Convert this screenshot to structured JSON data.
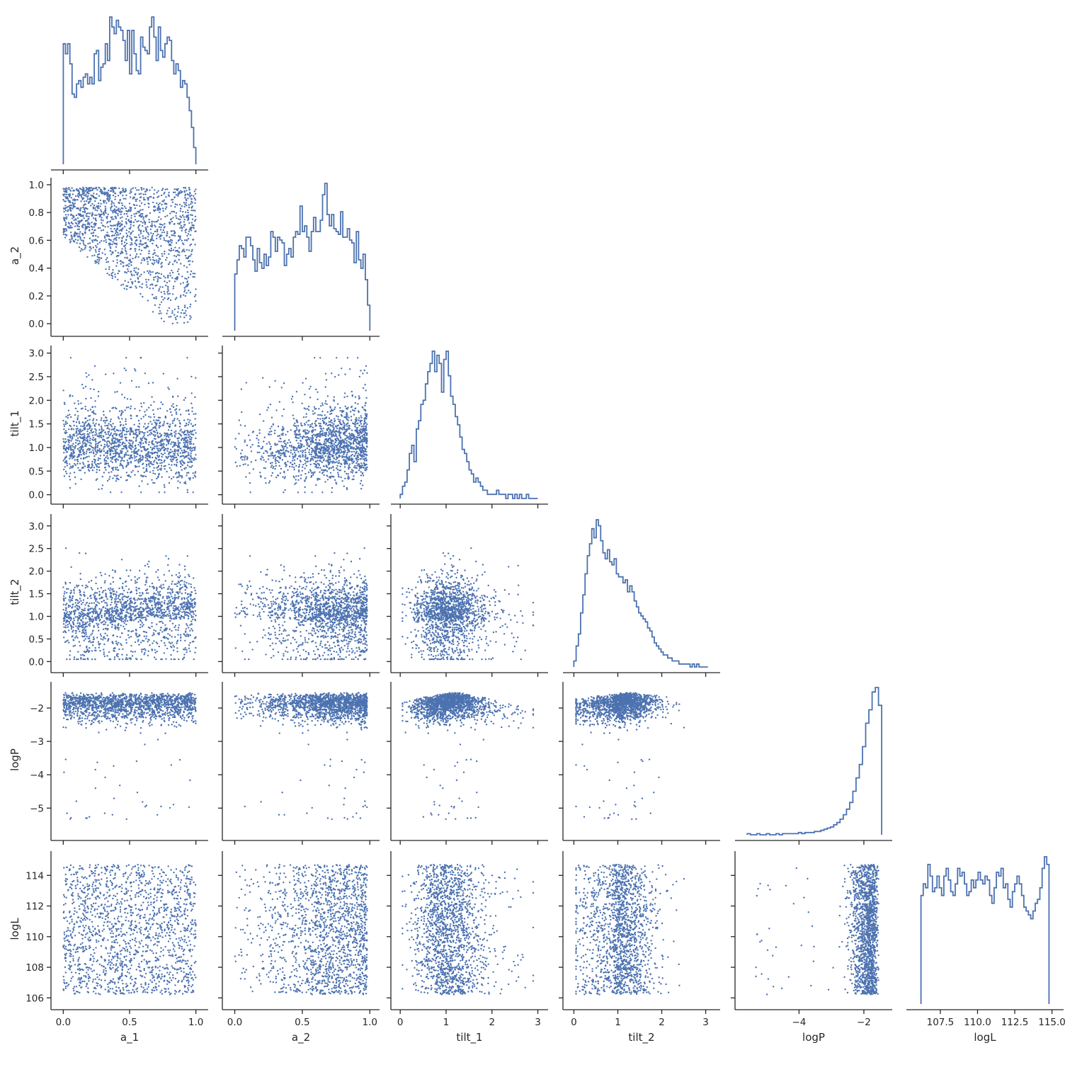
{
  "chart_data": {
    "type": "pairplot-corner",
    "colors": {
      "series": "#4c72b0",
      "axis": "#262626"
    },
    "grid": false,
    "variables": [
      "a_1",
      "a_2",
      "tilt_1",
      "tilt_2",
      "logP",
      "logL"
    ],
    "axis_labels": [
      "a_1",
      "a_2",
      "tilt_1",
      "tilt_2",
      "logP",
      "logL"
    ],
    "ranges": {
      "a_1": [
        -0.05,
        1.05
      ],
      "a_2": [
        -0.05,
        1.03
      ],
      "tilt_1": [
        -0.08,
        3.1
      ],
      "tilt_2": [
        -0.12,
        3.2
      ],
      "logP": [
        -5.8,
        -1.3
      ],
      "logL": [
        105.6,
        115.4
      ]
    },
    "ticks": {
      "a_1": [
        {
          "v": 0.0,
          "label": "0.0"
        },
        {
          "v": 0.5,
          "label": "0.5"
        },
        {
          "v": 1.0,
          "label": "1.0"
        }
      ],
      "a_2": [
        {
          "v": 0.0,
          "label": "0.0"
        },
        {
          "v": 0.2,
          "label": "0.2"
        },
        {
          "v": 0.4,
          "label": "0.4"
        },
        {
          "v": 0.6,
          "label": "0.6"
        },
        {
          "v": 0.8,
          "label": "0.8"
        },
        {
          "v": 1.0,
          "label": "1.0"
        }
      ],
      "a_2_x": [
        {
          "v": 0.0,
          "label": "0.0"
        },
        {
          "v": 0.5,
          "label": "0.5"
        },
        {
          "v": 1.0,
          "label": "1.0"
        }
      ],
      "tilt_1": [
        {
          "v": 0.0,
          "label": "0.0"
        },
        {
          "v": 0.5,
          "label": "0.5"
        },
        {
          "v": 1.0,
          "label": "1.0"
        },
        {
          "v": 1.5,
          "label": "1.5"
        },
        {
          "v": 2.0,
          "label": "2.0"
        },
        {
          "v": 2.5,
          "label": "2.5"
        },
        {
          "v": 3.0,
          "label": "3.0"
        }
      ],
      "tilt_1_x": [
        {
          "v": 0,
          "label": "0"
        },
        {
          "v": 1,
          "label": "1"
        },
        {
          "v": 2,
          "label": "2"
        },
        {
          "v": 3,
          "label": "3"
        }
      ],
      "tilt_2": [
        {
          "v": 0.0,
          "label": "0.0"
        },
        {
          "v": 0.5,
          "label": "0.5"
        },
        {
          "v": 1.0,
          "label": "1.0"
        },
        {
          "v": 1.5,
          "label": "1.5"
        },
        {
          "v": 2.0,
          "label": "2.0"
        },
        {
          "v": 2.5,
          "label": "2.5"
        },
        {
          "v": 3.0,
          "label": "3.0"
        }
      ],
      "tilt_2_x": [
        {
          "v": 0,
          "label": "0"
        },
        {
          "v": 1,
          "label": "1"
        },
        {
          "v": 2,
          "label": "2"
        },
        {
          "v": 3,
          "label": "3"
        }
      ],
      "logP": [
        {
          "v": -5,
          "label": "−5"
        },
        {
          "v": -4,
          "label": "−4"
        },
        {
          "v": -3,
          "label": "−3"
        },
        {
          "v": -2,
          "label": "−2"
        }
      ],
      "logP_x": [
        {
          "v": -4,
          "label": "−4"
        },
        {
          "v": -2,
          "label": "−2"
        }
      ],
      "logL": [
        {
          "v": 106,
          "label": "106"
        },
        {
          "v": 108,
          "label": "108"
        },
        {
          "v": 110,
          "label": "110"
        },
        {
          "v": 112,
          "label": "112"
        },
        {
          "v": 114,
          "label": "114"
        }
      ],
      "logL_x": [
        {
          "v": 107.5,
          "label": "107.5"
        },
        {
          "v": 110.0,
          "label": "110.0"
        },
        {
          "v": 112.5,
          "label": "112.5"
        },
        {
          "v": 115.0,
          "label": "115.0"
        }
      ]
    },
    "histograms": {
      "a_1": {
        "edges": [
          0.0,
          1.0
        ],
        "counts": [
          36,
          33,
          36,
          30,
          21,
          20,
          24,
          25,
          23,
          26,
          27,
          24,
          26,
          24,
          33,
          34,
          25,
          29,
          30,
          36,
          31,
          44,
          41,
          39,
          43,
          41,
          40,
          37,
          31,
          40,
          27,
          40,
          33,
          28,
          27,
          38,
          35,
          34,
          33,
          41,
          44,
          38,
          31,
          41,
          34,
          32,
          36,
          38,
          37,
          31,
          27,
          30,
          28,
          23,
          25,
          24,
          20,
          16,
          11,
          5
        ]
      },
      "a_2": {
        "edges": [
          0.0,
          1.0
        ],
        "counts": [
          20,
          25,
          30,
          29,
          26,
          33,
          33,
          30,
          25,
          21,
          29,
          24,
          22,
          27,
          23,
          26,
          35,
          33,
          28,
          33,
          32,
          31,
          23,
          27,
          29,
          26,
          33,
          35,
          34,
          44,
          35,
          37,
          33,
          28,
          35,
          40,
          35,
          35,
          39,
          48,
          52,
          41,
          37,
          41,
          36,
          35,
          34,
          42,
          33,
          33,
          36,
          32,
          31,
          24,
          35,
          25,
          22,
          27,
          18,
          9
        ]
      },
      "tilt_1": {
        "edges": [
          0.0,
          3.0
        ],
        "counts": [
          1,
          3,
          4,
          7,
          11,
          13,
          9,
          17,
          19,
          23,
          24,
          28,
          31,
          33,
          36,
          31,
          35,
          33,
          26,
          34,
          36,
          30,
          25,
          23,
          20,
          18,
          15,
          12,
          11,
          9,
          7,
          6,
          4,
          5,
          4,
          3,
          2,
          2,
          1,
          1,
          1,
          1,
          2,
          1,
          1,
          1,
          0,
          1,
          1,
          0,
          1,
          0,
          1,
          0,
          0,
          1,
          0,
          0,
          0,
          0
        ]
      },
      "tilt_2": {
        "edges": [
          0.0,
          3.05
        ],
        "counts": [
          2,
          7,
          11,
          18,
          24,
          31,
          37,
          41,
          46,
          43,
          49,
          47,
          42,
          38,
          36,
          39,
          35,
          34,
          36,
          31,
          30,
          30,
          28,
          29,
          25,
          27,
          25,
          22,
          20,
          18,
          17,
          16,
          15,
          13,
          12,
          10,
          8,
          7,
          6,
          5,
          4,
          4,
          3,
          3,
          2,
          2,
          2,
          1,
          1,
          1,
          1,
          1,
          0,
          1,
          0,
          1,
          0,
          0,
          0,
          0
        ]
      },
      "logP": {
        "edges": [
          -5.6,
          -1.45
        ],
        "counts": [
          1,
          0,
          0,
          1,
          0,
          0,
          1,
          0,
          0,
          1,
          0,
          1,
          1,
          1,
          1,
          1,
          2,
          1,
          2,
          2,
          2,
          3,
          3,
          4,
          5,
          6,
          7,
          9,
          11,
          14,
          18,
          23,
          29,
          39,
          51,
          63,
          79,
          100,
          112,
          128,
          132,
          116
        ]
      },
      "logL": {
        "edges": [
          106.2,
          114.8
        ],
        "counts": [
          28,
          31,
          30,
          36,
          33,
          29,
          30,
          33,
          30,
          28,
          33,
          35,
          32,
          29,
          28,
          31,
          35,
          33,
          34,
          31,
          28,
          29,
          32,
          30,
          32,
          34,
          32,
          31,
          33,
          32,
          28,
          26,
          30,
          34,
          33,
          35,
          30,
          31,
          27,
          25,
          29,
          31,
          33,
          31,
          28,
          25,
          24,
          23,
          22,
          24,
          26,
          27,
          30,
          35,
          38,
          36
        ]
      }
    },
    "scatter": {
      "n_points": 1600,
      "marker_size_px": 1.8
    }
  }
}
